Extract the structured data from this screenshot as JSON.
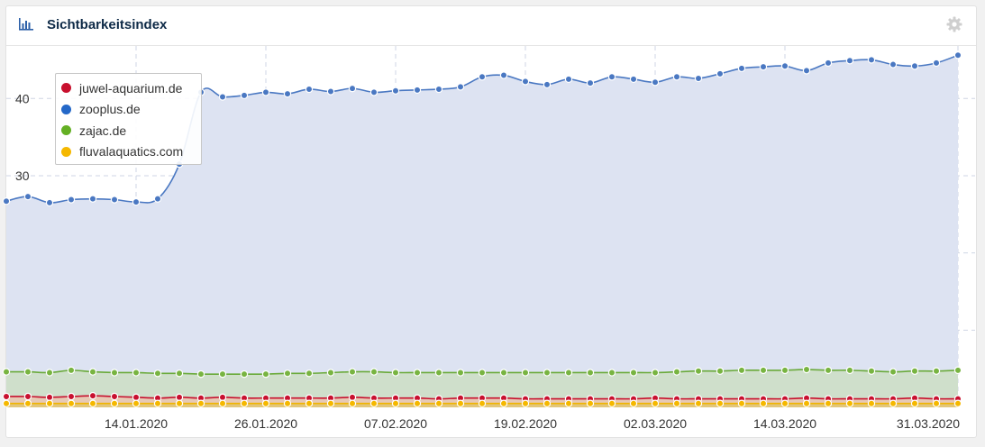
{
  "header": {
    "title": "Sichtbarkeitsindex",
    "chart_icon": "bar-chart-icon",
    "settings_icon": "gear-icon"
  },
  "colors": {
    "juwel": "#c8102e",
    "zooplus": "#2e6fcc",
    "zooplus_line": "#4a78c2",
    "zooplus_fill": "#dde3f2",
    "zajac": "#6cb52d",
    "zajac_fill": "#cfdfcb",
    "fluval": "#f5b800",
    "fluval_fill": "#e2c67a",
    "title": "#0e2a47"
  },
  "legend": [
    {
      "name": "juwel-aquarium.de",
      "color": "#c8102e"
    },
    {
      "name": "zooplus.de",
      "color": "#2468c8"
    },
    {
      "name": "zajac.de",
      "color": "#64b024"
    },
    {
      "name": "fluvalaquatics.com",
      "color": "#f5b800"
    }
  ],
  "chart_data": {
    "type": "area",
    "title": "Sichtbarkeitsindex",
    "xlabel": "",
    "ylabel": "",
    "ylim": [
      0,
      47.5
    ],
    "yticks": [
      10,
      20,
      30,
      40
    ],
    "x_tick_labels": [
      "14.01.2020",
      "26.01.2020",
      "07.02.2020",
      "19.02.2020",
      "02.03.2020",
      "14.03.2020",
      "31.03.2020"
    ],
    "x_tick_index": [
      6,
      12,
      18,
      24,
      30,
      36,
      44
    ],
    "grid": true,
    "legend_position": "top-left",
    "series": [
      {
        "name": "zooplus.de",
        "values": [
          26.7,
          27.3,
          26.5,
          26.9,
          27.0,
          26.9,
          26.6,
          27.0,
          31.5,
          40.8,
          40.2,
          40.4,
          40.8,
          40.6,
          41.2,
          40.9,
          41.3,
          40.8,
          41.0,
          41.1,
          41.2,
          41.5,
          42.8,
          43.0,
          42.2,
          41.8,
          42.5,
          42.0,
          42.8,
          42.5,
          42.1,
          42.8,
          42.6,
          43.2,
          43.9,
          44.1,
          44.2,
          43.6,
          44.6,
          44.9,
          45.0,
          44.4,
          44.2,
          44.6,
          45.6
        ]
      },
      {
        "name": "zajac.de",
        "values": [
          4.6,
          4.6,
          4.5,
          4.8,
          4.6,
          4.5,
          4.5,
          4.4,
          4.4,
          4.3,
          4.3,
          4.3,
          4.3,
          4.4,
          4.4,
          4.5,
          4.6,
          4.6,
          4.5,
          4.5,
          4.5,
          4.5,
          4.5,
          4.5,
          4.5,
          4.5,
          4.5,
          4.5,
          4.5,
          4.5,
          4.5,
          4.6,
          4.7,
          4.7,
          4.8,
          4.8,
          4.8,
          4.9,
          4.8,
          4.8,
          4.7,
          4.6,
          4.7,
          4.7,
          4.8
        ]
      },
      {
        "name": "juwel-aquarium.de",
        "values": [
          1.4,
          1.4,
          1.3,
          1.4,
          1.5,
          1.4,
          1.3,
          1.2,
          1.3,
          1.2,
          1.3,
          1.2,
          1.2,
          1.2,
          1.2,
          1.2,
          1.3,
          1.2,
          1.2,
          1.2,
          1.1,
          1.2,
          1.2,
          1.2,
          1.1,
          1.1,
          1.1,
          1.1,
          1.1,
          1.1,
          1.2,
          1.1,
          1.1,
          1.1,
          1.1,
          1.1,
          1.1,
          1.2,
          1.1,
          1.1,
          1.1,
          1.1,
          1.2,
          1.1,
          1.1
        ]
      },
      {
        "name": "fluvalaquatics.com",
        "values": [
          0.5,
          0.5,
          0.5,
          0.5,
          0.5,
          0.5,
          0.5,
          0.5,
          0.5,
          0.5,
          0.5,
          0.5,
          0.5,
          0.5,
          0.5,
          0.5,
          0.5,
          0.5,
          0.5,
          0.5,
          0.5,
          0.5,
          0.5,
          0.5,
          0.5,
          0.5,
          0.5,
          0.5,
          0.5,
          0.5,
          0.5,
          0.5,
          0.5,
          0.5,
          0.5,
          0.5,
          0.5,
          0.5,
          0.5,
          0.5,
          0.5,
          0.5,
          0.5,
          0.5,
          0.5
        ]
      }
    ]
  }
}
